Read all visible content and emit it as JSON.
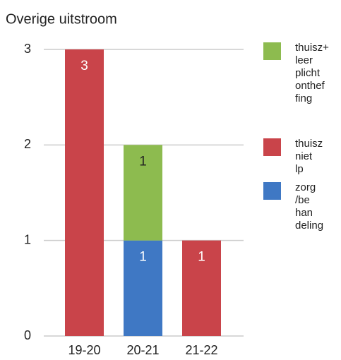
{
  "chart_data": {
    "type": "bar",
    "stacked": true,
    "title": "Overige uitstroom",
    "categories": [
      "19-20",
      "20-21",
      "21-22"
    ],
    "series": [
      {
        "name": "thuisz+ leer plicht onthef fing",
        "color": "#8dbb4f",
        "values": [
          null,
          1,
          null
        ]
      },
      {
        "name": "thuisz niet lp",
        "color": "#c9444a",
        "values": [
          3,
          null,
          1
        ]
      },
      {
        "name": "zorg /be han deling",
        "color": "#3f78c4",
        "values": [
          null,
          1,
          null
        ]
      }
    ],
    "ylim": [
      0,
      3
    ],
    "yticks": [
      0,
      1,
      2,
      3
    ],
    "grid": true,
    "legend": "right"
  }
}
